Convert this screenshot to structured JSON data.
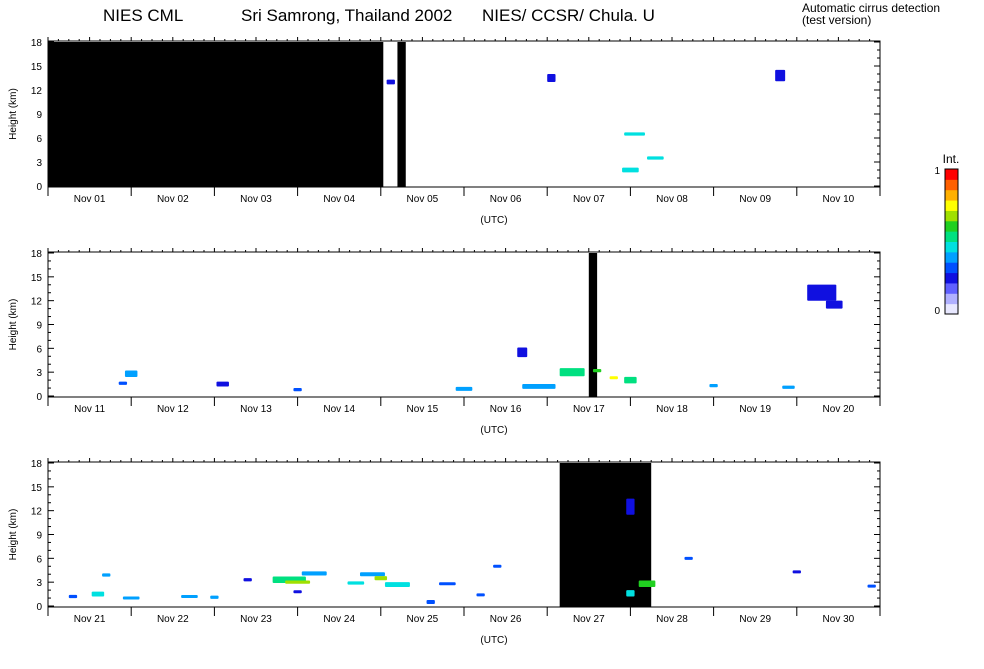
{
  "header": {
    "left": "NIES CML",
    "center": "Sri Samrong, Thailand  2002",
    "right": "NIES/ CCSR/ Chula. U",
    "note_line1": "Automatic cirrus detection",
    "note_line2": "(test version)"
  },
  "colorbar": {
    "title": "Int.",
    "max_label": "1",
    "min_label": "0",
    "colors": [
      "#e8e8ff",
      "#b0b0ff",
      "#6060ff",
      "#1010e0",
      "#0050ff",
      "#00a0ff",
      "#00e0e0",
      "#00e080",
      "#20d020",
      "#a0e000",
      "#ffff00",
      "#ffb000",
      "#ff6000",
      "#ff0000"
    ]
  },
  "chart_data": [
    {
      "type": "heatmap",
      "panel": "Nov 01 - Nov 10",
      "ylabel": "Height (km)",
      "xlabel": "(UTC)",
      "ylim": [
        0,
        18
      ],
      "yticks": [
        "0",
        "3",
        "6",
        "9",
        "12",
        "15",
        "18"
      ],
      "x_start_day": 1,
      "days_shown": 10,
      "categories": [
        "Nov 01",
        "Nov 02",
        "Nov 03",
        "Nov 04",
        "Nov 05",
        "Nov 06",
        "Nov 07",
        "Nov 08",
        "Nov 09",
        "Nov 10"
      ],
      "no_data": [
        [
          1.0,
          5.03
        ],
        [
          5.2,
          5.3
        ]
      ],
      "patches": [
        [
          5.12,
          13.0,
          0.1,
          0.6,
          0.2
        ],
        [
          7.05,
          13.5,
          0.1,
          1.0,
          0.2
        ],
        [
          8.05,
          6.5,
          0.25,
          0.4,
          0.45
        ],
        [
          8.0,
          2.0,
          0.2,
          0.6,
          0.45
        ],
        [
          8.3,
          3.5,
          0.2,
          0.4,
          0.45
        ],
        [
          9.8,
          13.8,
          0.12,
          1.4,
          0.2
        ]
      ]
    },
    {
      "type": "heatmap",
      "panel": "Nov 11 - Nov 20",
      "ylabel": "Height (km)",
      "xlabel": "(UTC)",
      "ylim": [
        0,
        18
      ],
      "yticks": [
        "0",
        "3",
        "6",
        "9",
        "12",
        "15",
        "18"
      ],
      "x_start_day": 11,
      "days_shown": 10,
      "categories": [
        "Nov 11",
        "Nov 12",
        "Nov 13",
        "Nov 14",
        "Nov 15",
        "Nov 16",
        "Nov 17",
        "Nov 18",
        "Nov 19",
        "Nov 20"
      ],
      "no_data": [
        [
          17.5,
          17.6
        ]
      ],
      "patches": [
        [
          12.0,
          2.8,
          0.15,
          0.8,
          0.4
        ],
        [
          11.9,
          1.6,
          0.1,
          0.4,
          0.3
        ],
        [
          13.1,
          1.5,
          0.15,
          0.6,
          0.25
        ],
        [
          14.0,
          0.8,
          0.1,
          0.4,
          0.3
        ],
        [
          16.0,
          0.9,
          0.2,
          0.5,
          0.35
        ],
        [
          16.9,
          1.2,
          0.4,
          0.6,
          0.4
        ],
        [
          16.7,
          5.5,
          0.12,
          1.2,
          0.2
        ],
        [
          17.3,
          3.0,
          0.3,
          1.0,
          0.5
        ],
        [
          17.6,
          3.2,
          0.1,
          0.4,
          0.65
        ],
        [
          17.8,
          2.3,
          0.1,
          0.3,
          0.75
        ],
        [
          18.0,
          2.0,
          0.15,
          0.8,
          0.5
        ],
        [
          19.0,
          1.3,
          0.1,
          0.4,
          0.35
        ],
        [
          19.9,
          1.1,
          0.15,
          0.4,
          0.35
        ],
        [
          20.3,
          13.0,
          0.35,
          2.0,
          0.2
        ],
        [
          20.45,
          11.5,
          0.2,
          1.0,
          0.2
        ]
      ]
    },
    {
      "type": "heatmap",
      "panel": "Nov 21 - Nov 30",
      "ylabel": "Height (km)",
      "xlabel": "(UTC)",
      "ylim": [
        0,
        18
      ],
      "yticks": [
        "0",
        "3",
        "6",
        "9",
        "12",
        "15",
        "18"
      ],
      "x_start_day": 21,
      "days_shown": 10,
      "categories": [
        "Nov 21",
        "Nov 22",
        "Nov 23",
        "Nov 24",
        "Nov 25",
        "Nov 26",
        "Nov 27",
        "Nov 28",
        "Nov 29",
        "Nov 30"
      ],
      "no_data": [
        [
          27.15,
          28.25
        ]
      ],
      "patches": [
        [
          21.3,
          1.2,
          0.1,
          0.4,
          0.3
        ],
        [
          21.6,
          1.5,
          0.15,
          0.6,
          0.45
        ],
        [
          21.7,
          3.9,
          0.1,
          0.4,
          0.4
        ],
        [
          22.0,
          1.0,
          0.2,
          0.3,
          0.4
        ],
        [
          22.7,
          1.2,
          0.2,
          0.3,
          0.35
        ],
        [
          23.0,
          1.1,
          0.1,
          0.4,
          0.35
        ],
        [
          23.4,
          3.3,
          0.1,
          0.4,
          0.25
        ],
        [
          23.9,
          3.3,
          0.4,
          0.8,
          0.55
        ],
        [
          24.0,
          3.0,
          0.3,
          0.4,
          0.7
        ],
        [
          24.2,
          4.1,
          0.3,
          0.5,
          0.4
        ],
        [
          24.7,
          2.9,
          0.2,
          0.4,
          0.45
        ],
        [
          24.9,
          4.0,
          0.3,
          0.5,
          0.4
        ],
        [
          25.0,
          3.5,
          0.15,
          0.5,
          0.7
        ],
        [
          25.2,
          2.7,
          0.3,
          0.6,
          0.45
        ],
        [
          24.0,
          1.8,
          0.1,
          0.3,
          0.2
        ],
        [
          25.6,
          0.5,
          0.1,
          0.5,
          0.3
        ],
        [
          25.8,
          2.8,
          0.2,
          0.3,
          0.3
        ],
        [
          26.4,
          5.0,
          0.1,
          0.3,
          0.3
        ],
        [
          26.2,
          1.4,
          0.1,
          0.3,
          0.3
        ],
        [
          28.0,
          12.5,
          0.1,
          2.0,
          0.2
        ],
        [
          28.2,
          2.8,
          0.2,
          0.8,
          0.6
        ],
        [
          28.0,
          1.6,
          0.1,
          0.8,
          0.45
        ],
        [
          28.7,
          6.0,
          0.1,
          0.2,
          0.3
        ],
        [
          30.0,
          4.3,
          0.1,
          0.2,
          0.25
        ],
        [
          30.9,
          2.5,
          0.1,
          0.2,
          0.3
        ]
      ]
    }
  ]
}
